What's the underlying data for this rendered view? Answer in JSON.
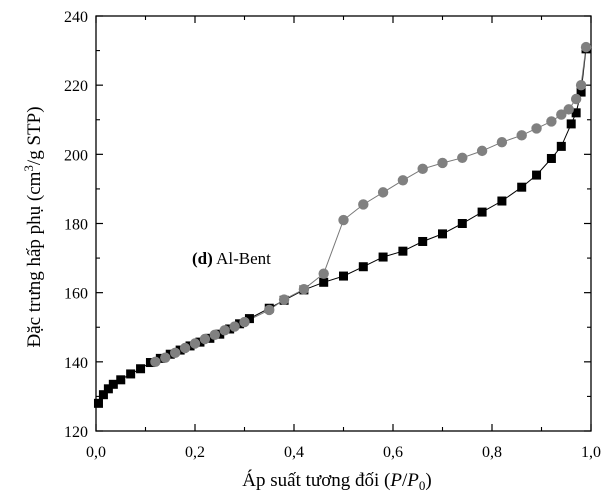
{
  "chart_data": {
    "type": "line",
    "title": "",
    "xlabel": {
      "pre": "Áp suất tương đối (",
      "p": "P",
      "slash": "/",
      "p0": "P",
      "sub": "0",
      "post": ")"
    },
    "ylabel": {
      "pre": "Đặc trưng hấp phụ (cm",
      "sup": "3",
      "post": "/g STP)"
    },
    "xlim": [
      0.0,
      1.0
    ],
    "ylim": [
      120,
      240
    ],
    "x_ticks": [
      "0,0",
      "0,2",
      "0,4",
      "0,6",
      "0,8",
      "1,0"
    ],
    "x_tick_values": [
      0.0,
      0.2,
      0.4,
      0.6,
      0.8,
      1.0
    ],
    "y_ticks": [
      "120",
      "140",
      "160",
      "180",
      "200",
      "220",
      "240"
    ],
    "y_tick_values": [
      120,
      140,
      160,
      180,
      200,
      220,
      240
    ],
    "annotation": {
      "bold": "(d)",
      "text": " Al-Bent"
    },
    "series": [
      {
        "marker": "square",
        "color": "#000000",
        "line_color": "#000000",
        "points": [
          [
            0.005,
            128.0
          ],
          [
            0.015,
            130.5
          ],
          [
            0.025,
            132.2
          ],
          [
            0.035,
            133.5
          ],
          [
            0.05,
            134.8
          ],
          [
            0.07,
            136.5
          ],
          [
            0.09,
            138.0
          ],
          [
            0.11,
            139.8
          ],
          [
            0.13,
            141.0
          ],
          [
            0.15,
            142.2
          ],
          [
            0.17,
            143.4
          ],
          [
            0.19,
            144.6
          ],
          [
            0.21,
            145.7
          ],
          [
            0.23,
            146.8
          ],
          [
            0.25,
            148.0
          ],
          [
            0.27,
            149.5
          ],
          [
            0.29,
            151.0
          ],
          [
            0.31,
            152.5
          ],
          [
            0.35,
            155.5
          ],
          [
            0.38,
            157.8
          ],
          [
            0.42,
            160.8
          ],
          [
            0.46,
            163.0
          ],
          [
            0.5,
            164.8
          ],
          [
            0.54,
            167.5
          ],
          [
            0.58,
            170.3
          ],
          [
            0.62,
            172.0
          ],
          [
            0.66,
            174.8
          ],
          [
            0.7,
            177.0
          ],
          [
            0.74,
            180.0
          ],
          [
            0.78,
            183.3
          ],
          [
            0.82,
            186.5
          ],
          [
            0.86,
            190.5
          ],
          [
            0.89,
            194.0
          ],
          [
            0.92,
            198.8
          ],
          [
            0.94,
            202.3
          ],
          [
            0.96,
            208.8
          ],
          [
            0.97,
            212.0
          ],
          [
            0.98,
            218.0
          ],
          [
            0.99,
            230.5
          ]
        ]
      },
      {
        "marker": "circle",
        "color": "#808080",
        "line_color": "#777777",
        "points": [
          [
            0.12,
            140.0
          ],
          [
            0.14,
            141.2
          ],
          [
            0.16,
            142.6
          ],
          [
            0.18,
            144.0
          ],
          [
            0.2,
            145.3
          ],
          [
            0.22,
            146.6
          ],
          [
            0.24,
            147.8
          ],
          [
            0.26,
            149.1
          ],
          [
            0.28,
            150.2
          ],
          [
            0.3,
            151.5
          ],
          [
            0.35,
            155.0
          ],
          [
            0.38,
            158.0
          ],
          [
            0.42,
            161.0
          ],
          [
            0.46,
            165.5
          ],
          [
            0.5,
            181.0
          ],
          [
            0.54,
            185.5
          ],
          [
            0.58,
            189.0
          ],
          [
            0.62,
            192.5
          ],
          [
            0.66,
            195.8
          ],
          [
            0.7,
            197.5
          ],
          [
            0.74,
            199.0
          ],
          [
            0.78,
            201.0
          ],
          [
            0.82,
            203.5
          ],
          [
            0.86,
            205.5
          ],
          [
            0.89,
            207.5
          ],
          [
            0.92,
            209.5
          ],
          [
            0.94,
            211.5
          ],
          [
            0.955,
            213.0
          ],
          [
            0.97,
            216.0
          ],
          [
            0.98,
            220.0
          ],
          [
            0.99,
            231.0
          ]
        ]
      }
    ]
  }
}
